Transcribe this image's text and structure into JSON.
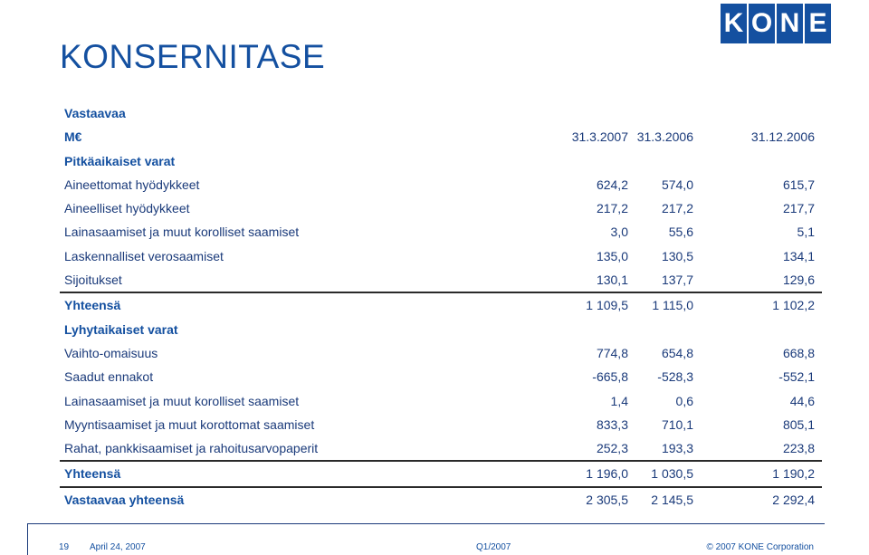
{
  "header": {
    "title": "KONSERNITASE"
  },
  "logo": {
    "letters": [
      "K",
      "O",
      "N",
      "E"
    ]
  },
  "table": {
    "heading": "Vastaavaa",
    "unit": "M€",
    "columns": [
      "31.3.2007",
      "31.3.2006",
      "31.12.2006"
    ],
    "section1": "Pitkäaikaiset varat",
    "rows1": [
      {
        "label": "Aineettomat hyödykkeet",
        "v": [
          "624,2",
          "574,0",
          "615,7"
        ]
      },
      {
        "label": "Aineelliset hyödykkeet",
        "v": [
          "217,2",
          "217,2",
          "217,7"
        ]
      },
      {
        "label": "Lainasaamiset ja muut korolliset saamiset",
        "v": [
          "3,0",
          "55,6",
          "5,1"
        ]
      },
      {
        "label": "Laskennalliset verosaamiset",
        "v": [
          "135,0",
          "130,5",
          "134,1"
        ]
      },
      {
        "label": "Sijoitukset",
        "v": [
          "130,1",
          "137,7",
          "129,6"
        ]
      }
    ],
    "total1": {
      "label": "Yhteensä",
      "v": [
        "1 109,5",
        "1 115,0",
        "1 102,2"
      ]
    },
    "section2": "Lyhytaikaiset varat",
    "rows2": [
      {
        "label": "Vaihto-omaisuus",
        "v": [
          "774,8",
          "654,8",
          "668,8"
        ]
      },
      {
        "label": "Saadut ennakot",
        "v": [
          "-665,8",
          "-528,3",
          "-552,1"
        ]
      },
      {
        "label": "Lainasaamiset ja muut korolliset saamiset",
        "v": [
          "1,4",
          "0,6",
          "44,6"
        ]
      },
      {
        "label": "Myyntisaamiset ja muut korottomat saamiset",
        "v": [
          "833,3",
          "710,1",
          "805,1"
        ]
      },
      {
        "label": "Rahat, pankkisaamiset ja rahoitusarvopaperit",
        "v": [
          "252,3",
          "193,3",
          "223,8"
        ]
      }
    ],
    "total2": {
      "label": "Yhteensä",
      "v": [
        "1 196,0",
        "1 030,5",
        "1 190,2"
      ]
    },
    "grand": {
      "label": "Vastaavaa yhteensä",
      "v": [
        "2 305,5",
        "2 145,5",
        "2 292,4"
      ]
    }
  },
  "footer": {
    "page": "19",
    "date": "April 24, 2007",
    "quarter": "Q1/2007",
    "copyright": "© 2007 KONE Corporation"
  }
}
